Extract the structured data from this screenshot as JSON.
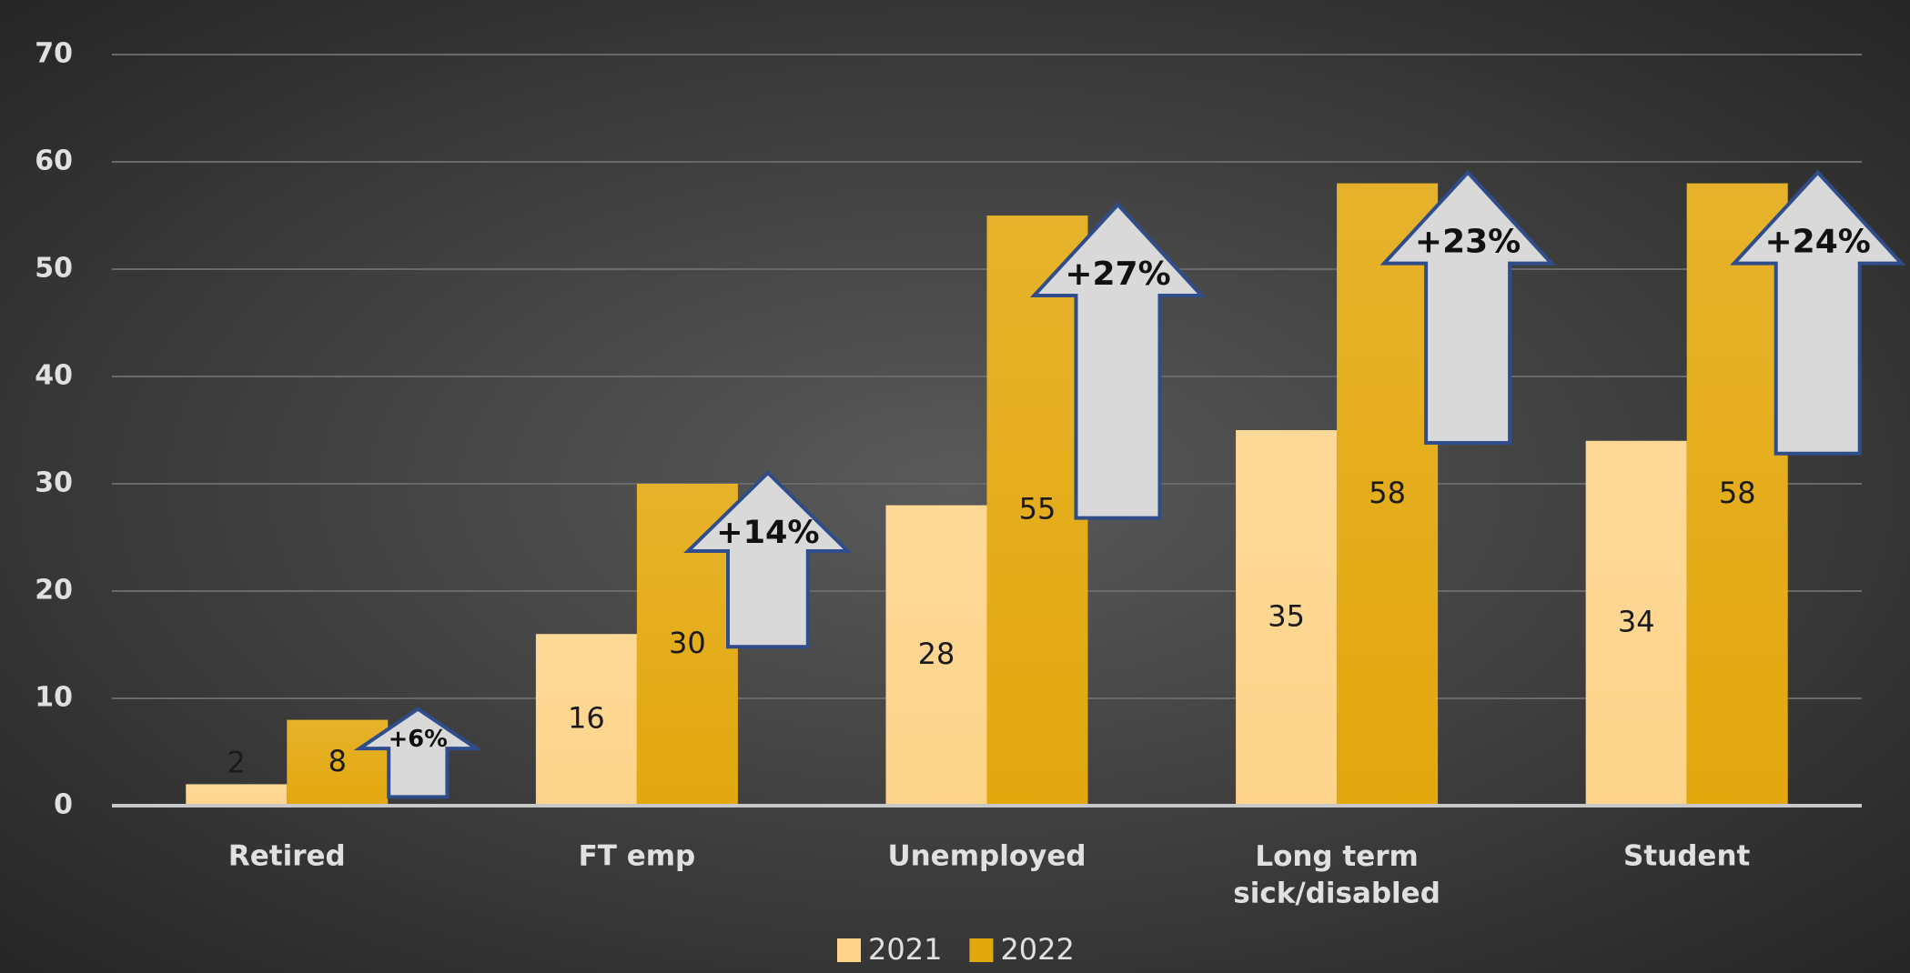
{
  "chart_data": {
    "type": "bar",
    "categories": [
      "Retired",
      "FT emp",
      "Unemployed",
      "Long term\nsick/disabled",
      "Student"
    ],
    "series": [
      {
        "name": "2021",
        "color": "#fdd48a",
        "values": [
          2,
          16,
          28,
          35,
          34
        ]
      },
      {
        "name": "2022",
        "color": "#e3a80e",
        "values": [
          8,
          30,
          55,
          58,
          58
        ]
      }
    ],
    "annotations": [
      "+6%",
      "+14%",
      "+27%",
      "+23%",
      "+24%"
    ],
    "ylim": [
      0,
      70
    ],
    "yticks": [
      0,
      10,
      20,
      30,
      40,
      50,
      60,
      70
    ],
    "grid": true,
    "legend": "bottom"
  }
}
